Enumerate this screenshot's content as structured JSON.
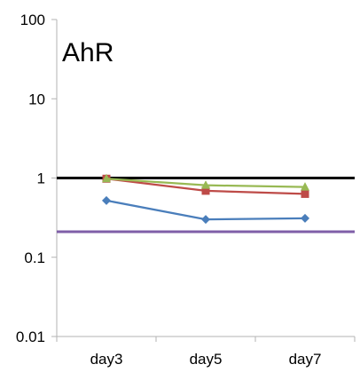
{
  "chart_data": {
    "type": "line",
    "title": "AhR",
    "xlabel": "",
    "ylabel": "",
    "categories": [
      "day3",
      "day5",
      "day7"
    ],
    "y_scale": "log",
    "ylim": [
      0.01,
      100
    ],
    "y_ticks": [
      "0.01",
      "0.1",
      "1",
      "10",
      "100"
    ],
    "y_tick_values": [
      0.01,
      0.1,
      1,
      10,
      100
    ],
    "grid": false,
    "legend": "none",
    "series": [
      {
        "color": "#4A7EBB",
        "marker": "diamond",
        "values": [
          0.52,
          0.3,
          0.31
        ]
      },
      {
        "color": "#BE4B48",
        "marker": "square",
        "values": [
          0.98,
          0.69,
          0.63
        ]
      },
      {
        "color": "#98B954",
        "marker": "triangle",
        "values": [
          0.98,
          0.81,
          0.77
        ]
      }
    ],
    "reference_lines": [
      {
        "value": 1,
        "color": "#000000"
      },
      {
        "value": 0.21,
        "color": "#7F5FA8"
      }
    ]
  }
}
